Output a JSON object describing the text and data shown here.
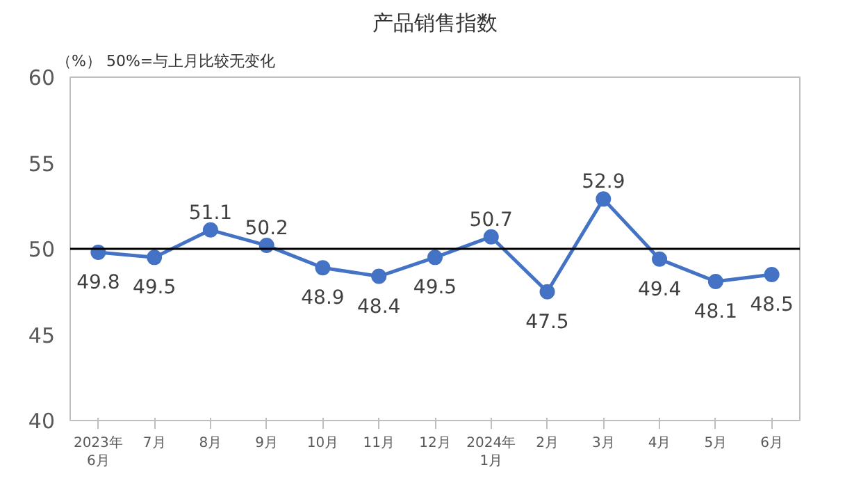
{
  "chart_data": {
    "type": "line",
    "title": "产品销售指数",
    "annotations": [
      "（%）  50%=与上月比较无变化"
    ],
    "categories": [
      "2023年\n6月",
      "7月",
      "8月",
      "9月",
      "10月",
      "11月",
      "12月",
      "2024年\n1月",
      "2月",
      "3月",
      "4月",
      "5月",
      "6月"
    ],
    "series": [
      {
        "color": "#4472c4",
        "values": [
          49.8,
          49.5,
          51.1,
          50.2,
          48.9,
          48.4,
          49.5,
          50.7,
          47.5,
          52.9,
          49.4,
          48.1,
          48.5
        ]
      }
    ],
    "ylim": [
      40,
      60
    ],
    "yticks": [
      40,
      45,
      50,
      55,
      60
    ],
    "ref_lines": [
      {
        "axis": "y",
        "value": 50,
        "color": "#000000"
      }
    ],
    "data_labels": true,
    "marker": "circle",
    "grid": false
  }
}
